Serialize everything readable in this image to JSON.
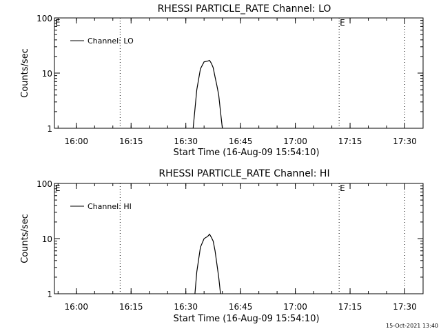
{
  "footer_timestamp": "15-Oct-2021 13:40",
  "colors": {
    "background": "#ffffff",
    "foreground": "#000000"
  },
  "chart_data": [
    {
      "type": "line",
      "title": "RHESSI PARTICLE_RATE Channel: LO",
      "xlabel": "Start Time (16-Aug-09 15:54:10)",
      "ylabel": "Counts/sec",
      "yscale": "log",
      "ylim": [
        1,
        100
      ],
      "xlim": [
        "15:54",
        "17:35"
      ],
      "xticks": [
        "16:00",
        "16:15",
        "16:30",
        "16:45",
        "17:00",
        "17:15",
        "17:30"
      ],
      "yticks": [
        "1",
        "10",
        "100"
      ],
      "legend": {
        "position": "top-left",
        "label": "Channel: LO"
      },
      "annotations": [
        {
          "text": "E",
          "x": "15:54"
        },
        {
          "text": "E",
          "x": "17:12"
        }
      ],
      "vlines": [
        "16:12",
        "17:12",
        "17:30"
      ],
      "series": [
        {
          "name": "Channel: LO",
          "x": [
            "16:32",
            "16:33",
            "16:34",
            "16:35",
            "16:36",
            "16:36:30",
            "16:37",
            "16:37:30",
            "16:38",
            "16:38:30",
            "16:39",
            "16:39:30",
            "16:40"
          ],
          "y": [
            1,
            5,
            12,
            16,
            16.5,
            17,
            15,
            12.5,
            8.5,
            6,
            4,
            2,
            1
          ]
        }
      ]
    },
    {
      "type": "line",
      "title": "RHESSI PARTICLE_RATE Channel: HI",
      "xlabel": "Start Time (16-Aug-09 15:54:10)",
      "ylabel": "Counts/sec",
      "yscale": "log",
      "ylim": [
        1,
        100
      ],
      "xlim": [
        "15:54",
        "17:35"
      ],
      "xticks": [
        "16:00",
        "16:15",
        "16:30",
        "16:45",
        "17:00",
        "17:15",
        "17:30"
      ],
      "yticks": [
        "1",
        "10",
        "100"
      ],
      "legend": {
        "position": "top-left",
        "label": "Channel: HI"
      },
      "annotations": [
        {
          "text": "E",
          "x": "15:54"
        },
        {
          "text": "E",
          "x": "17:12"
        }
      ],
      "vlines": [
        "16:12",
        "17:12",
        "17:30"
      ],
      "series": [
        {
          "name": "Channel: HI",
          "x": [
            "16:32:30",
            "16:33",
            "16:34",
            "16:35",
            "16:36",
            "16:36:30",
            "16:37",
            "16:37:30",
            "16:38",
            "16:38:30",
            "16:39",
            "16:39:30"
          ],
          "y": [
            1,
            2.5,
            7,
            10,
            11,
            12,
            10.5,
            9,
            6,
            3.5,
            2,
            1
          ]
        }
      ]
    }
  ]
}
